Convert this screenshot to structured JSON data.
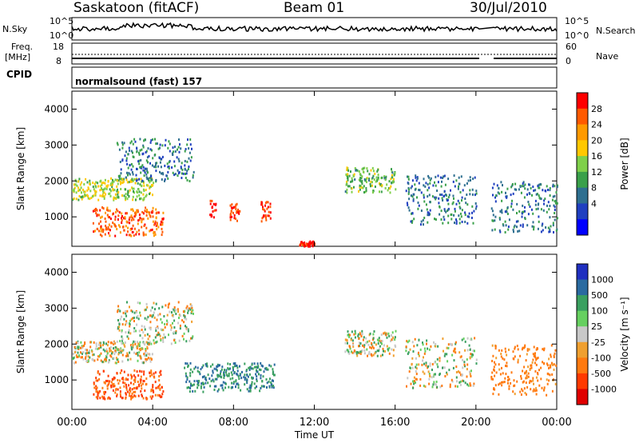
{
  "header": {
    "station": "Saskatoon (fitACF)",
    "beam": "Beam 01",
    "date": "30/Jul/2010"
  },
  "top_panels": {
    "nsky_label": "N.Sky",
    "nsky_ticks": [
      "10^5",
      "10^0"
    ],
    "nsearch_label": "N.Search",
    "nsearch_ticks": [
      "10^5",
      "10^0"
    ],
    "freq_label": "Freq.",
    "freq_unit": "[MHz]",
    "freq_ticks": [
      "18",
      "8"
    ],
    "nave_label": "Nave",
    "nave_ticks": [
      "60",
      "0"
    ],
    "cpid_label": "CPID",
    "program": "normalsound (fast) 157"
  },
  "colorbars": {
    "power": {
      "label": "Power [dB]",
      "ticks": [
        "28",
        "24",
        "20",
        "16",
        "12",
        "8",
        "4"
      ],
      "colors": [
        "#ff0000",
        "#ff5a00",
        "#ff9a00",
        "#ffc800",
        "#7fd04a",
        "#3aa04a",
        "#2e6f90",
        "#1f3fc0",
        "#0000ff"
      ]
    },
    "velocity": {
      "label": "Velocity [m s⁻¹]",
      "ticks": [
        "1000",
        "500",
        "100",
        "25",
        "-25",
        "-100",
        "-500",
        "-1000"
      ],
      "colors": [
        "#2030c0",
        "#2a6aa0",
        "#3aa060",
        "#66d060",
        "#c8c8c8",
        "#f0a030",
        "#ff7a10",
        "#ff3a00",
        "#e00000"
      ]
    }
  },
  "chart_data": [
    {
      "type": "heatmap",
      "title": "Power",
      "xlabel": "Time UT",
      "ylabel": "Slant Range [km]",
      "x_ticks": [
        "00:00",
        "04:00",
        "08:00",
        "12:00",
        "16:00",
        "20:00",
        "00:00"
      ],
      "y_ticks": [
        "1000",
        "2000",
        "3000",
        "4000"
      ],
      "xlim_hours": [
        0,
        24
      ],
      "ylim_km": [
        180,
        4500
      ],
      "data_gap_hours": [
        20.1,
        20.7
      ],
      "scatter_bands": [
        {
          "t0": 0.0,
          "t1": 4.0,
          "r0_km": 1500,
          "r1_km": 2100,
          "value_db": 14
        },
        {
          "t0": 2.2,
          "t1": 6.0,
          "r0_km": 2000,
          "r1_km": 3200,
          "value_db": 8
        },
        {
          "t0": 1.0,
          "t1": 4.5,
          "r0_km": 500,
          "r1_km": 1300,
          "value_db": 24
        },
        {
          "t0": 6.8,
          "t1": 7.1,
          "r0_km": 1000,
          "r1_km": 1500,
          "value_db": 26
        },
        {
          "t0": 7.8,
          "t1": 8.3,
          "r0_km": 900,
          "r1_km": 1400,
          "value_db": 26
        },
        {
          "t0": 9.3,
          "t1": 9.8,
          "r0_km": 900,
          "r1_km": 1500,
          "value_db": 26
        },
        {
          "t0": 11.2,
          "t1": 12.0,
          "r0_km": 200,
          "r1_km": 350,
          "value_db": 28
        },
        {
          "t0": 13.5,
          "t1": 16.0,
          "r0_km": 1700,
          "r1_km": 2400,
          "value_db": 12
        },
        {
          "t0": 16.5,
          "t1": 20.0,
          "r0_km": 800,
          "r1_km": 2200,
          "value_db": 8
        },
        {
          "t0": 20.7,
          "t1": 24.0,
          "r0_km": 600,
          "r1_km": 2000,
          "value_db": 8
        }
      ]
    },
    {
      "type": "heatmap",
      "title": "Velocity",
      "xlabel": "Time UT",
      "ylabel": "Slant Range [km]",
      "x_ticks": [
        "00:00",
        "04:00",
        "08:00",
        "12:00",
        "16:00",
        "20:00",
        "00:00"
      ],
      "y_ticks": [
        "1000",
        "2000",
        "3000",
        "4000"
      ],
      "xlim_hours": [
        0,
        24
      ],
      "ylim_km": [
        180,
        4500
      ],
      "data_gap_hours": [
        20.1,
        20.7
      ],
      "scatter_bands": [
        {
          "t0": 0.0,
          "t1": 4.0,
          "r0_km": 1500,
          "r1_km": 2100,
          "value_ms": 0
        },
        {
          "t0": 2.2,
          "t1": 6.0,
          "r0_km": 2000,
          "r1_km": 3200,
          "value_ms": 0
        },
        {
          "t0": 1.0,
          "t1": 4.5,
          "r0_km": 500,
          "r1_km": 1300,
          "value_ms": -300
        },
        {
          "t0": 5.5,
          "t1": 10.0,
          "r0_km": 700,
          "r1_km": 1500,
          "value_ms": 300
        },
        {
          "t0": 13.5,
          "t1": 16.0,
          "r0_km": 1700,
          "r1_km": 2400,
          "value_ms": 0
        },
        {
          "t0": 16.5,
          "t1": 20.0,
          "r0_km": 800,
          "r1_km": 2200,
          "value_ms": 0
        },
        {
          "t0": 20.7,
          "t1": 24.0,
          "r0_km": 600,
          "r1_km": 2000,
          "value_ms": -150
        }
      ]
    }
  ]
}
